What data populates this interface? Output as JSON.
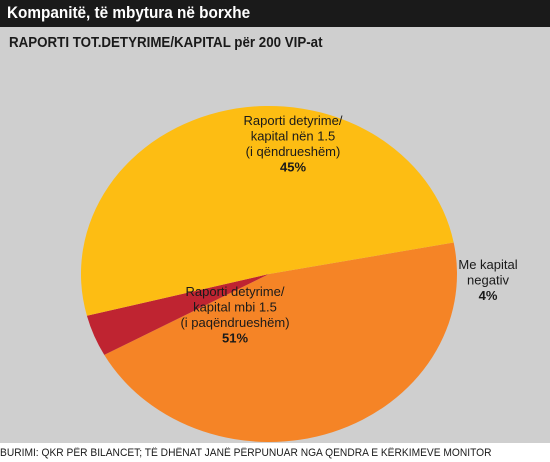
{
  "header": {
    "title": "Kompanitë, të mbytura në borxhe"
  },
  "footer": {
    "source": "BURIMI: QKR PËR BILANCET; TË DHËNAT JANË PËRPUNUAR NGA QENDRA E KËRKIMEVE MONITOR"
  },
  "chart_data": {
    "type": "pie",
    "title": "RAPORTI TOT.DETYRIME/KAPITAL për 200 VIP-at",
    "slices": [
      {
        "label_lines": [
          "Raporti detyrime/",
          "kapital nën 1.5",
          "(i qëndrueshëm)"
        ],
        "value": 45,
        "value_label": "45%",
        "color": "#f58426"
      },
      {
        "label_lines": [
          "Me kapital",
          "negativ"
        ],
        "value": 4,
        "value_label": "4%",
        "color": "#bf2431"
      },
      {
        "label_lines": [
          "Raporti detyrime/",
          "kapital mbi 1.5",
          "(i paqëndrueshëm)"
        ],
        "value": 51,
        "value_label": "51%",
        "color": "#fdbd13"
      }
    ]
  }
}
